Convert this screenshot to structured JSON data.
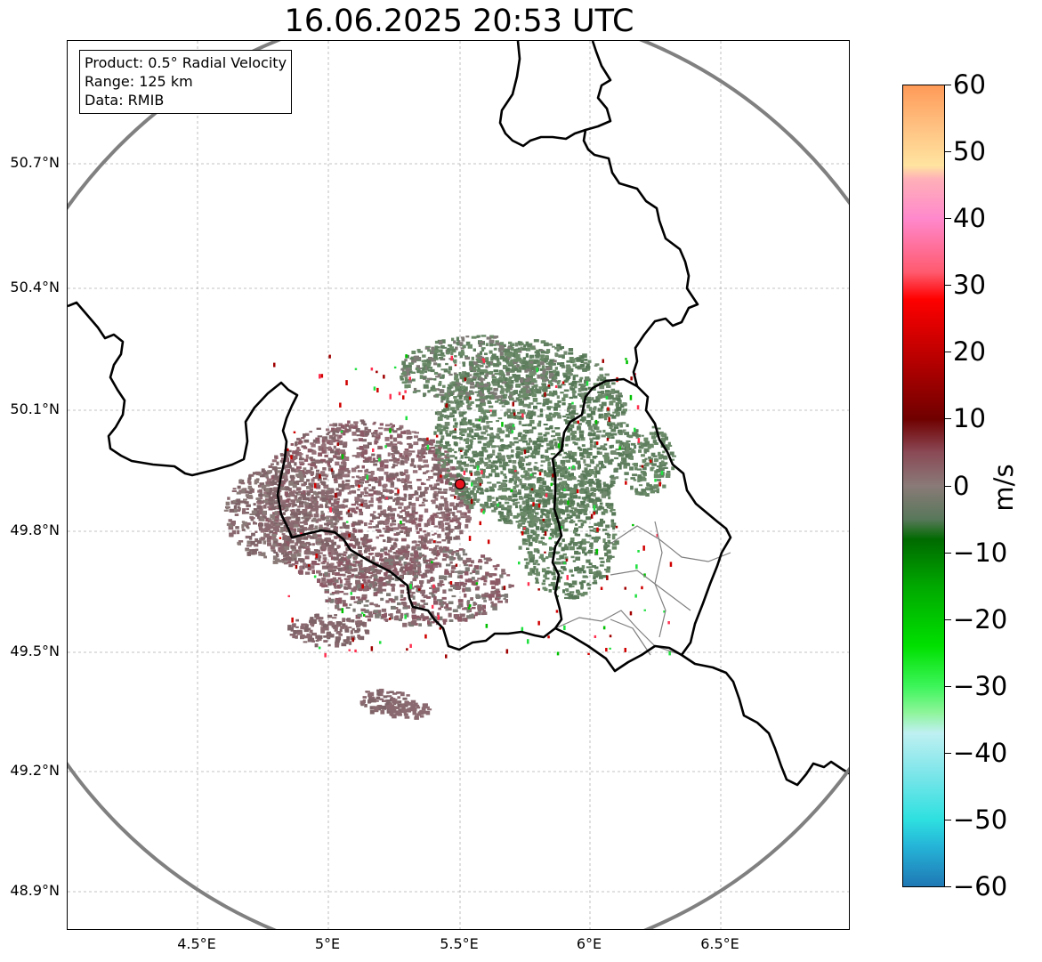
{
  "title": "16.06.2025 20:53 UTC",
  "info": {
    "product": "Product: 0.5° Radial Velocity",
    "range": "Range: 125 km",
    "data": "Data: RMIB"
  },
  "map": {
    "lat_ticks": [
      "50.7°N",
      "50.4°N",
      "50.1°N",
      "49.8°N",
      "49.5°N",
      "49.2°N",
      "48.9°N"
    ],
    "lon_ticks": [
      "4.5°E",
      "5°E",
      "5.5°E",
      "6°E",
      "6.5°E"
    ],
    "radar_site": {
      "lon": 5.505,
      "lat": 49.915,
      "color": "#e8141e"
    },
    "range_ring_color": "#808080",
    "border_color": "#000000",
    "province_color": "#808080"
  },
  "colorbar": {
    "unit": "m/s",
    "min": -60,
    "max": 60,
    "ticks": [
      "60",
      "50",
      "40",
      "30",
      "20",
      "10",
      "0",
      "−10",
      "−20",
      "−30",
      "−40",
      "−50",
      "−60"
    ],
    "stops": [
      {
        "v": -60,
        "c": "#1f78b4"
      },
      {
        "v": -54,
        "c": "#25b4d8"
      },
      {
        "v": -50,
        "c": "#2ee0e0"
      },
      {
        "v": -43,
        "c": "#7ee6ea"
      },
      {
        "v": -37,
        "c": "#bff0f2"
      },
      {
        "v": -34,
        "c": "#8ef59a"
      },
      {
        "v": -30,
        "c": "#3cf55a"
      },
      {
        "v": -24,
        "c": "#00e000"
      },
      {
        "v": -15,
        "c": "#00a800"
      },
      {
        "v": -8,
        "c": "#006a00"
      },
      {
        "v": -5,
        "c": "#58785a"
      },
      {
        "v": 0,
        "c": "#8a7a78"
      },
      {
        "v": 5,
        "c": "#8a4a56"
      },
      {
        "v": 10,
        "c": "#700000"
      },
      {
        "v": 20,
        "c": "#c00000"
      },
      {
        "v": 28,
        "c": "#ff0000"
      },
      {
        "v": 32,
        "c": "#ff5a6e"
      },
      {
        "v": 40,
        "c": "#ff88cc"
      },
      {
        "v": 46,
        "c": "#ffb0b8"
      },
      {
        "v": 48,
        "c": "#ffe4a0"
      },
      {
        "v": 54,
        "c": "#ffc080"
      },
      {
        "v": 60,
        "c": "#ff9a58"
      }
    ]
  }
}
